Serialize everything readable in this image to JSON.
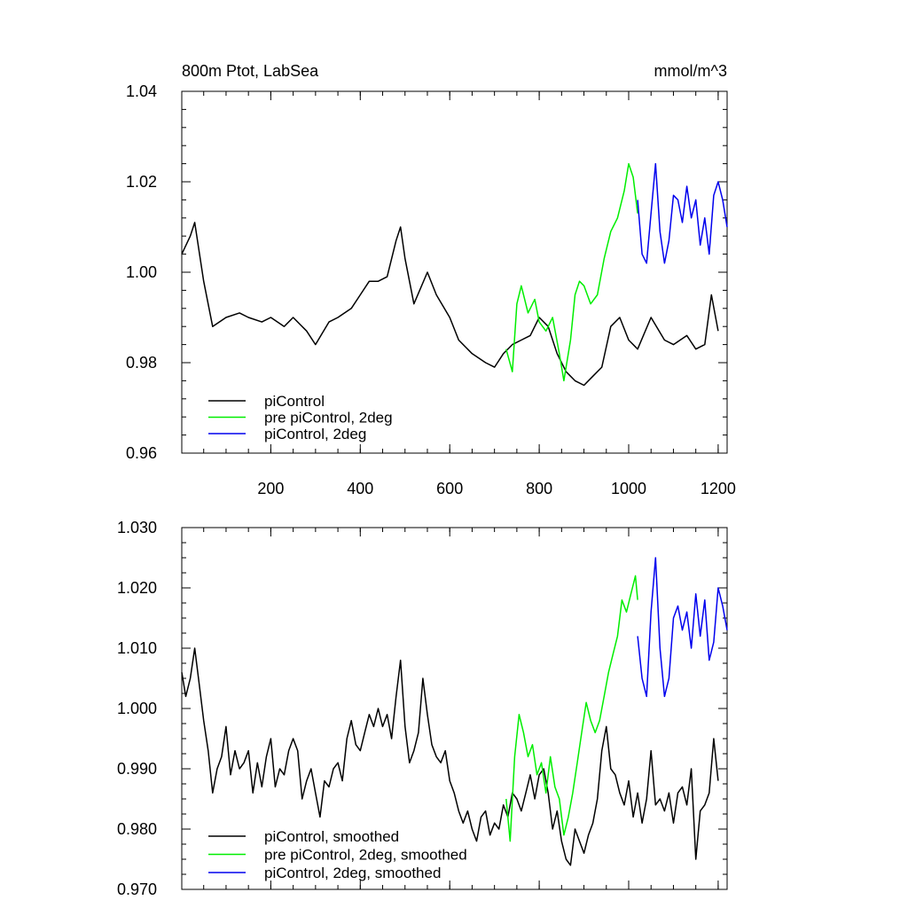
{
  "chart_data": [
    {
      "type": "line",
      "title_left": "800m Ptot, LabSea",
      "title_right": "mmol/m^3",
      "xlim": [
        1,
        1220
      ],
      "ylim": [
        0.96,
        1.04
      ],
      "xticks": [
        200,
        400,
        600,
        800,
        1000,
        1200
      ],
      "xtick_labels": [
        "200",
        "400",
        "600",
        "800",
        "1000",
        "1200"
      ],
      "yticks": [
        0.96,
        0.98,
        1.0,
        1.02,
        1.04
      ],
      "ytick_labels": [
        "0.96",
        "0.98",
        "1.00",
        "1.02",
        "1.04"
      ],
      "legend": {
        "position": "bottom-left",
        "entries": [
          "piControl",
          "pre piControl, 2deg",
          "piControl, 2deg"
        ]
      },
      "series": [
        {
          "name": "piControl",
          "color": "#000000",
          "x": [
            1,
            20,
            30,
            50,
            70,
            100,
            130,
            150,
            180,
            200,
            230,
            250,
            280,
            300,
            330,
            350,
            380,
            400,
            420,
            440,
            460,
            480,
            490,
            500,
            520,
            550,
            570,
            600,
            620,
            650,
            680,
            700,
            720,
            740,
            760,
            780,
            800,
            820,
            840,
            860,
            880,
            900,
            920,
            940,
            960,
            980,
            1000,
            1020,
            1050,
            1080,
            1100,
            1130,
            1150,
            1170,
            1185,
            1200
          ],
          "y": [
            1.004,
            1.008,
            1.011,
            0.998,
            0.988,
            0.99,
            0.991,
            0.99,
            0.989,
            0.99,
            0.988,
            0.99,
            0.987,
            0.984,
            0.989,
            0.99,
            0.992,
            0.995,
            0.998,
            0.998,
            0.999,
            1.007,
            1.01,
            1.003,
            0.993,
            1.0,
            0.995,
            0.99,
            0.985,
            0.982,
            0.98,
            0.979,
            0.982,
            0.984,
            0.985,
            0.986,
            0.99,
            0.988,
            0.982,
            0.978,
            0.976,
            0.975,
            0.977,
            0.979,
            0.988,
            0.99,
            0.985,
            0.983,
            0.99,
            0.985,
            0.984,
            0.986,
            0.983,
            0.984,
            0.995,
            0.987
          ]
        },
        {
          "name": "pre piControl, 2deg",
          "color": "#00ee00",
          "x": [
            726,
            740,
            750,
            760,
            775,
            790,
            800,
            815,
            830,
            845,
            855,
            870,
            880,
            890,
            900,
            915,
            930,
            945,
            960,
            975,
            990,
            1000,
            1010,
            1020
          ],
          "y": [
            0.983,
            0.978,
            0.993,
            0.997,
            0.991,
            0.994,
            0.989,
            0.987,
            0.99,
            0.982,
            0.976,
            0.985,
            0.995,
            0.998,
            0.997,
            0.993,
            0.995,
            1.003,
            1.009,
            1.012,
            1.018,
            1.024,
            1.021,
            1.013
          ]
        },
        {
          "name": "piControl, 2deg",
          "color": "#0000ee",
          "x": [
            1020,
            1030,
            1040,
            1050,
            1060,
            1070,
            1080,
            1090,
            1100,
            1110,
            1120,
            1130,
            1140,
            1150,
            1160,
            1170,
            1180,
            1190,
            1200,
            1210,
            1220
          ],
          "y": [
            1.016,
            1.004,
            1.002,
            1.013,
            1.024,
            1.009,
            1.002,
            1.007,
            1.017,
            1.016,
            1.011,
            1.019,
            1.012,
            1.016,
            1.006,
            1.012,
            1.004,
            1.017,
            1.02,
            1.016,
            1.01
          ]
        }
      ]
    },
    {
      "type": "line",
      "xlim": [
        1,
        1220
      ],
      "ylim": [
        0.97,
        1.03
      ],
      "xticks": [
        200,
        400,
        600,
        800,
        1000,
        1200
      ],
      "yticks": [
        0.97,
        0.98,
        0.99,
        1.0,
        1.01,
        1.02,
        1.03
      ],
      "ytick_labels": [
        "0.970",
        "0.980",
        "0.990",
        "1.000",
        "1.010",
        "1.020",
        "1.030"
      ],
      "legend": {
        "position": "bottom-left",
        "entries": [
          "piControl, smoothed",
          "pre piControl, 2deg, smoothed",
          "piControl, 2deg, smoothed"
        ]
      },
      "series": [
        {
          "name": "piControl, smoothed",
          "color": "#000000",
          "x": [
            1,
            10,
            20,
            30,
            40,
            50,
            60,
            70,
            80,
            90,
            100,
            110,
            120,
            130,
            140,
            150,
            160,
            170,
            180,
            190,
            200,
            210,
            220,
            230,
            240,
            250,
            260,
            270,
            280,
            290,
            300,
            310,
            320,
            330,
            340,
            350,
            360,
            370,
            380,
            390,
            400,
            410,
            420,
            430,
            440,
            450,
            460,
            470,
            480,
            490,
            500,
            510,
            520,
            530,
            540,
            550,
            560,
            570,
            580,
            590,
            600,
            610,
            620,
            630,
            640,
            650,
            660,
            670,
            680,
            690,
            700,
            710,
            720,
            730,
            740,
            750,
            760,
            770,
            780,
            790,
            800,
            810,
            820,
            830,
            840,
            850,
            860,
            870,
            880,
            890,
            900,
            910,
            920,
            930,
            940,
            950,
            960,
            970,
            980,
            990,
            1000,
            1010,
            1020,
            1030,
            1040,
            1050,
            1060,
            1070,
            1080,
            1090,
            1100,
            1110,
            1120,
            1130,
            1140,
            1150,
            1160,
            1170,
            1180,
            1190,
            1200
          ],
          "y": [
            1.006,
            1.002,
            1.005,
            1.01,
            1.004,
            0.998,
            0.993,
            0.986,
            0.99,
            0.992,
            0.997,
            0.989,
            0.993,
            0.99,
            0.991,
            0.993,
            0.986,
            0.991,
            0.987,
            0.992,
            0.995,
            0.987,
            0.99,
            0.989,
            0.993,
            0.995,
            0.993,
            0.985,
            0.988,
            0.99,
            0.986,
            0.982,
            0.988,
            0.987,
            0.99,
            0.991,
            0.988,
            0.995,
            0.998,
            0.994,
            0.993,
            0.996,
            0.999,
            0.997,
            1.0,
            0.997,
            0.999,
            0.995,
            1.002,
            1.008,
            0.997,
            0.991,
            0.993,
            0.996,
            1.005,
            0.999,
            0.994,
            0.992,
            0.991,
            0.993,
            0.988,
            0.986,
            0.983,
            0.981,
            0.983,
            0.98,
            0.978,
            0.982,
            0.983,
            0.979,
            0.981,
            0.98,
            0.984,
            0.982,
            0.986,
            0.985,
            0.983,
            0.986,
            0.989,
            0.985,
            0.989,
            0.99,
            0.986,
            0.98,
            0.983,
            0.978,
            0.975,
            0.974,
            0.98,
            0.978,
            0.976,
            0.979,
            0.981,
            0.985,
            0.993,
            0.997,
            0.99,
            0.989,
            0.986,
            0.984,
            0.988,
            0.982,
            0.986,
            0.981,
            0.985,
            0.993,
            0.984,
            0.985,
            0.983,
            0.986,
            0.981,
            0.986,
            0.987,
            0.984,
            0.99,
            0.975,
            0.983,
            0.984,
            0.986,
            0.995,
            0.988
          ]
        },
        {
          "name": "pre piControl, 2deg, smoothed",
          "color": "#00ee00",
          "x": [
            726,
            735,
            745,
            755,
            765,
            775,
            785,
            795,
            805,
            815,
            825,
            835,
            845,
            855,
            865,
            875,
            885,
            895,
            905,
            915,
            925,
            935,
            945,
            955,
            965,
            975,
            985,
            995,
            1005,
            1015,
            1020
          ],
          "y": [
            0.985,
            0.978,
            0.992,
            0.999,
            0.996,
            0.992,
            0.994,
            0.989,
            0.991,
            0.986,
            0.992,
            0.987,
            0.985,
            0.979,
            0.982,
            0.986,
            0.991,
            0.996,
            1.001,
            0.998,
            0.996,
            0.998,
            1.002,
            1.006,
            1.009,
            1.012,
            1.018,
            1.016,
            1.019,
            1.022,
            1.018
          ]
        },
        {
          "name": "piControl, 2deg, smoothed",
          "color": "#0000ee",
          "x": [
            1020,
            1030,
            1040,
            1050,
            1060,
            1070,
            1080,
            1090,
            1100,
            1110,
            1120,
            1130,
            1140,
            1150,
            1160,
            1170,
            1180,
            1190,
            1200,
            1210,
            1220
          ],
          "y": [
            1.012,
            1.005,
            1.002,
            1.016,
            1.025,
            1.01,
            1.002,
            1.005,
            1.015,
            1.017,
            1.013,
            1.016,
            1.01,
            1.019,
            1.012,
            1.018,
            1.008,
            1.011,
            1.02,
            1.017,
            1.013
          ]
        }
      ]
    }
  ]
}
